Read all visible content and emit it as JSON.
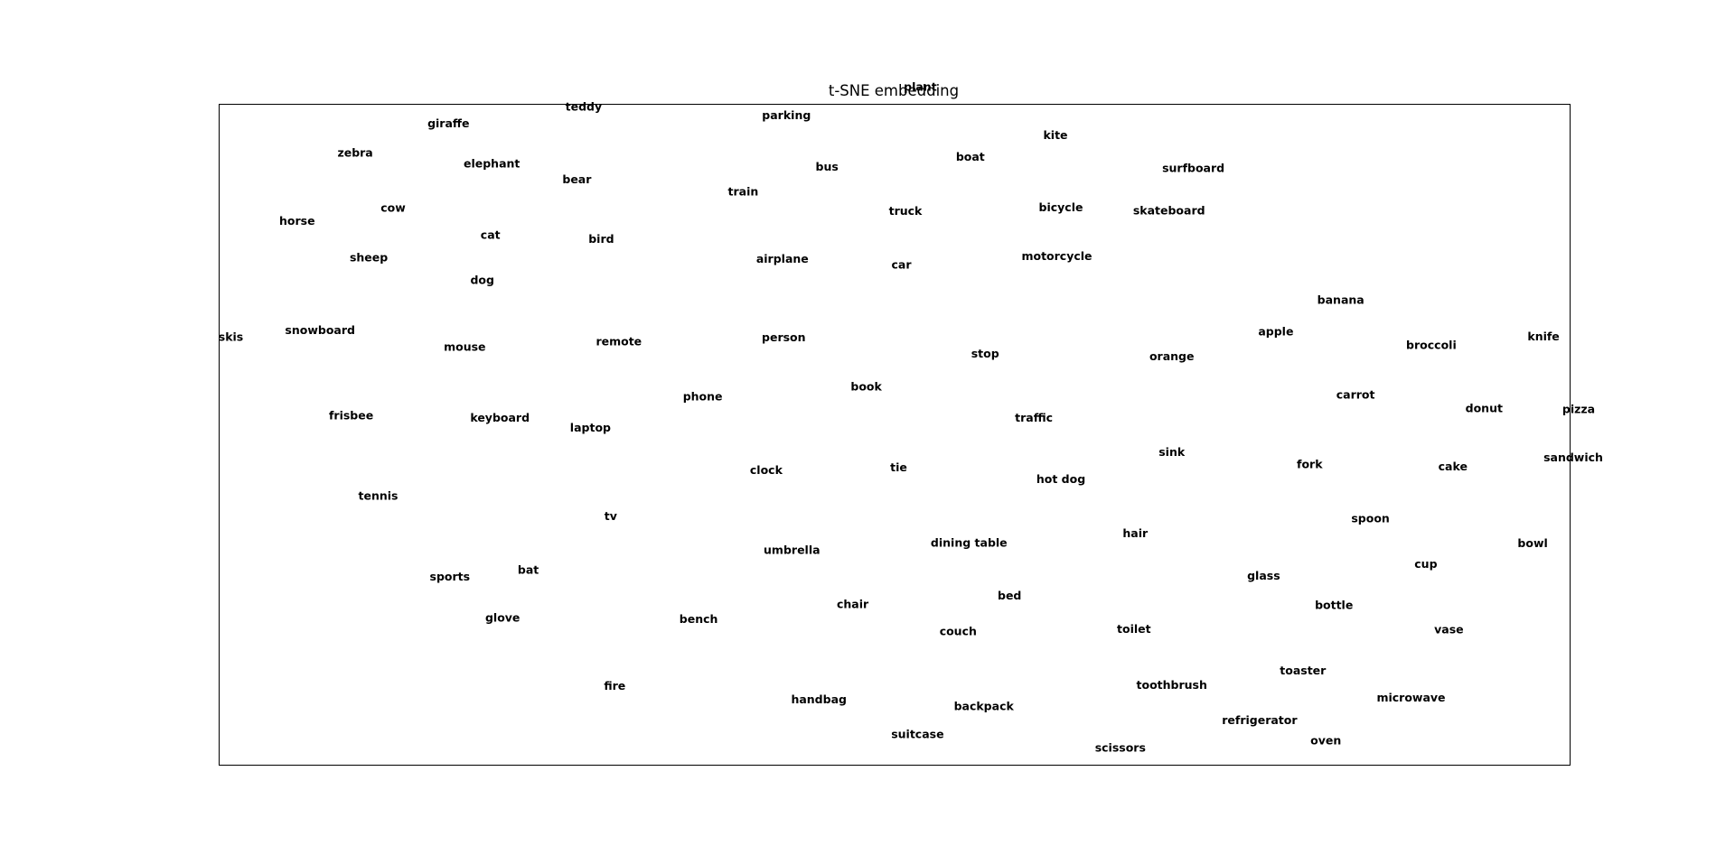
{
  "chart_data": {
    "type": "scatter",
    "title": "t-SNE embedding",
    "xlabel": "",
    "ylabel": "",
    "grid": false,
    "axes_visible": false,
    "xlim": [
      0,
      100
    ],
    "ylim": [
      0,
      100
    ],
    "text_color": "#000000",
    "points": [
      {
        "label": "plant",
        "x": 51.9,
        "y": 102.6
      },
      {
        "label": "teddy",
        "x": 27.0,
        "y": 99.6
      },
      {
        "label": "giraffe",
        "x": 17.0,
        "y": 97.1
      },
      {
        "label": "parking",
        "x": 42.0,
        "y": 98.3
      },
      {
        "label": "kite",
        "x": 61.9,
        "y": 95.3
      },
      {
        "label": "zebra",
        "x": 10.1,
        "y": 92.6
      },
      {
        "label": "elephant",
        "x": 20.2,
        "y": 91.0
      },
      {
        "label": "boat",
        "x": 55.6,
        "y": 92.0
      },
      {
        "label": "bus",
        "x": 45.0,
        "y": 90.5
      },
      {
        "label": "surfboard",
        "x": 72.1,
        "y": 90.3
      },
      {
        "label": "bear",
        "x": 26.5,
        "y": 88.6
      },
      {
        "label": "train",
        "x": 38.8,
        "y": 86.8
      },
      {
        "label": "horse",
        "x": 5.8,
        "y": 82.3
      },
      {
        "label": "cow",
        "x": 12.9,
        "y": 84.3
      },
      {
        "label": "truck",
        "x": 50.8,
        "y": 83.8
      },
      {
        "label": "bicycle",
        "x": 62.3,
        "y": 84.4
      },
      {
        "label": "skateboard",
        "x": 70.3,
        "y": 83.9
      },
      {
        "label": "cat",
        "x": 20.1,
        "y": 80.2
      },
      {
        "label": "bird",
        "x": 28.3,
        "y": 79.6
      },
      {
        "label": "sheep",
        "x": 11.1,
        "y": 76.8
      },
      {
        "label": "airplane",
        "x": 41.7,
        "y": 76.6
      },
      {
        "label": "motorcycle",
        "x": 62.0,
        "y": 77.0
      },
      {
        "label": "car",
        "x": 50.5,
        "y": 75.7
      },
      {
        "label": "dog",
        "x": 19.5,
        "y": 73.4
      },
      {
        "label": "banana",
        "x": 83.0,
        "y": 70.4
      },
      {
        "label": "skis",
        "x": 0.9,
        "y": 64.8
      },
      {
        "label": "snowboard",
        "x": 7.5,
        "y": 65.8
      },
      {
        "label": "apple",
        "x": 78.2,
        "y": 65.6
      },
      {
        "label": "knife",
        "x": 98.0,
        "y": 64.9
      },
      {
        "label": "mouse",
        "x": 18.2,
        "y": 63.3
      },
      {
        "label": "remote",
        "x": 29.6,
        "y": 64.1
      },
      {
        "label": "person",
        "x": 41.8,
        "y": 64.7
      },
      {
        "label": "broccoli",
        "x": 89.7,
        "y": 63.6
      },
      {
        "label": "stop",
        "x": 56.7,
        "y": 62.3
      },
      {
        "label": "orange",
        "x": 70.5,
        "y": 61.9
      },
      {
        "label": "book",
        "x": 47.9,
        "y": 57.3
      },
      {
        "label": "phone",
        "x": 35.8,
        "y": 55.8
      },
      {
        "label": "carrot",
        "x": 84.1,
        "y": 56.1
      },
      {
        "label": "donut",
        "x": 93.6,
        "y": 54.0
      },
      {
        "label": "pizza",
        "x": 100.6,
        "y": 53.9
      },
      {
        "label": "frisbee",
        "x": 9.8,
        "y": 52.9
      },
      {
        "label": "keyboard",
        "x": 20.8,
        "y": 52.6
      },
      {
        "label": "traffic",
        "x": 60.3,
        "y": 52.6
      },
      {
        "label": "laptop",
        "x": 27.5,
        "y": 51.1
      },
      {
        "label": "sink",
        "x": 70.5,
        "y": 47.4
      },
      {
        "label": "sandwich",
        "x": 100.2,
        "y": 46.6
      },
      {
        "label": "fork",
        "x": 80.7,
        "y": 45.6
      },
      {
        "label": "cake",
        "x": 91.3,
        "y": 45.2
      },
      {
        "label": "clock",
        "x": 40.5,
        "y": 44.7
      },
      {
        "label": "tie",
        "x": 50.3,
        "y": 45.1
      },
      {
        "label": "hot dog",
        "x": 62.3,
        "y": 43.3
      },
      {
        "label": "tennis",
        "x": 11.8,
        "y": 40.8
      },
      {
        "label": "tv",
        "x": 29.0,
        "y": 37.7
      },
      {
        "label": "spoon",
        "x": 85.2,
        "y": 37.4
      },
      {
        "label": "hair",
        "x": 67.8,
        "y": 35.1
      },
      {
        "label": "dining table",
        "x": 55.5,
        "y": 33.7
      },
      {
        "label": "bowl",
        "x": 97.2,
        "y": 33.6
      },
      {
        "label": "umbrella",
        "x": 42.4,
        "y": 32.6
      },
      {
        "label": "cup",
        "x": 89.3,
        "y": 30.5
      },
      {
        "label": "bat",
        "x": 22.9,
        "y": 29.6
      },
      {
        "label": "sports",
        "x": 17.1,
        "y": 28.6
      },
      {
        "label": "glass",
        "x": 77.3,
        "y": 28.7
      },
      {
        "label": "bed",
        "x": 58.5,
        "y": 25.7
      },
      {
        "label": "chair",
        "x": 46.9,
        "y": 24.4
      },
      {
        "label": "bottle",
        "x": 82.5,
        "y": 24.3
      },
      {
        "label": "glove",
        "x": 21.0,
        "y": 22.4
      },
      {
        "label": "bench",
        "x": 35.5,
        "y": 22.2
      },
      {
        "label": "toilet",
        "x": 67.7,
        "y": 20.7
      },
      {
        "label": "couch",
        "x": 54.7,
        "y": 20.3
      },
      {
        "label": "vase",
        "x": 91.0,
        "y": 20.6
      },
      {
        "label": "toaster",
        "x": 80.2,
        "y": 14.4
      },
      {
        "label": "toothbrush",
        "x": 70.5,
        "y": 12.2
      },
      {
        "label": "fire",
        "x": 29.3,
        "y": 12.1
      },
      {
        "label": "microwave",
        "x": 88.2,
        "y": 10.3
      },
      {
        "label": "handbag",
        "x": 44.4,
        "y": 10.0
      },
      {
        "label": "backpack",
        "x": 56.6,
        "y": 9.0
      },
      {
        "label": "refrigerator",
        "x": 77.0,
        "y": 6.9
      },
      {
        "label": "suitcase",
        "x": 51.7,
        "y": 4.8
      },
      {
        "label": "oven",
        "x": 81.9,
        "y": 3.8
      },
      {
        "label": "scissors",
        "x": 66.7,
        "y": 2.7
      }
    ]
  }
}
